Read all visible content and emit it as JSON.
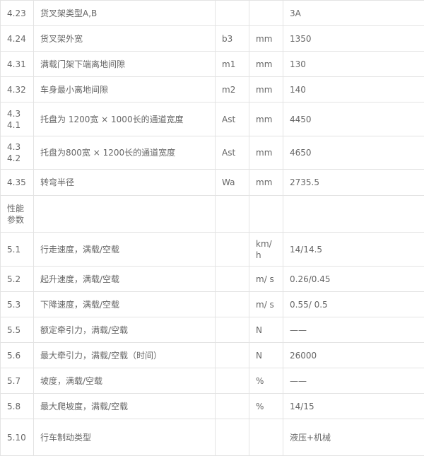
{
  "rows": [
    {
      "no": "4.23",
      "name": "货叉架类型A,B",
      "sym": "",
      "unit": "",
      "val": "3A",
      "h": 36
    },
    {
      "no": "4.24",
      "name": "货叉架外宽",
      "sym": "b3",
      "unit": "mm",
      "val": "1350",
      "h": 36
    },
    {
      "no": "4.31",
      "name": "满载门架下端离地间隙",
      "sym": "m1",
      "unit": "mm",
      "val": "130",
      "h": 36
    },
    {
      "no": "4.32",
      "name": "车身最小离地间隙",
      "sym": "m2",
      "unit": "mm",
      "val": "140",
      "h": 36
    },
    {
      "no": "4.3 4.1",
      "name": "托盘为 1200宽 × 1000长的通道宽度",
      "sym": "Ast",
      "unit": "mm",
      "val": "4450",
      "h": 48
    },
    {
      "no": "4.3 4.2",
      "name": "托盘为800宽 × 1200长的通道宽度",
      "sym": "Ast",
      "unit": "mm",
      "val": "4650",
      "h": 47
    },
    {
      "no": "4.35",
      "name": "转弯半径",
      "sym": "Wa",
      "unit": "mm",
      "val": "2735.5",
      "h": 37
    },
    {
      "no": "性能参数",
      "name": "",
      "sym": "",
      "unit": "",
      "val": "",
      "h": 52
    },
    {
      "no": "5.1",
      "name": "行走速度，满载/空载",
      "sym": "",
      "unit": "km/h",
      "val": "14/14.5",
      "h": 48
    },
    {
      "no": "5.2",
      "name": "起升速度，满载/空载",
      "sym": "",
      "unit": "m/ s",
      "val": "0.26/0.45",
      "h": 36
    },
    {
      "no": "5.3",
      "name": "下降速度，满载/空载",
      "sym": "",
      "unit": "m/ s",
      "val": "0.55/ 0.5",
      "h": 36
    },
    {
      "no": "5.5",
      "name": "额定牵引力，满载/空载",
      "sym": "",
      "unit": "N",
      "val": "——",
      "h": 36
    },
    {
      "no": "5.6",
      "name": "最大牵引力，满载/空载（时间）",
      "sym": "",
      "unit": "N",
      "val": "26000",
      "h": 36
    },
    {
      "no": "5.7",
      "name": "坡度，满载/空载",
      "sym": "",
      "unit": "%",
      "val": "——",
      "h": 36
    },
    {
      "no": "5.8",
      "name": "最大爬坡度，满载/空载",
      "sym": "",
      "unit": "%",
      "val": "14/15",
      "h": 36
    },
    {
      "no": "5.10",
      "name": "行车制动类型",
      "sym": "",
      "unit": "",
      "val": "液压+机械",
      "h": 52
    }
  ]
}
